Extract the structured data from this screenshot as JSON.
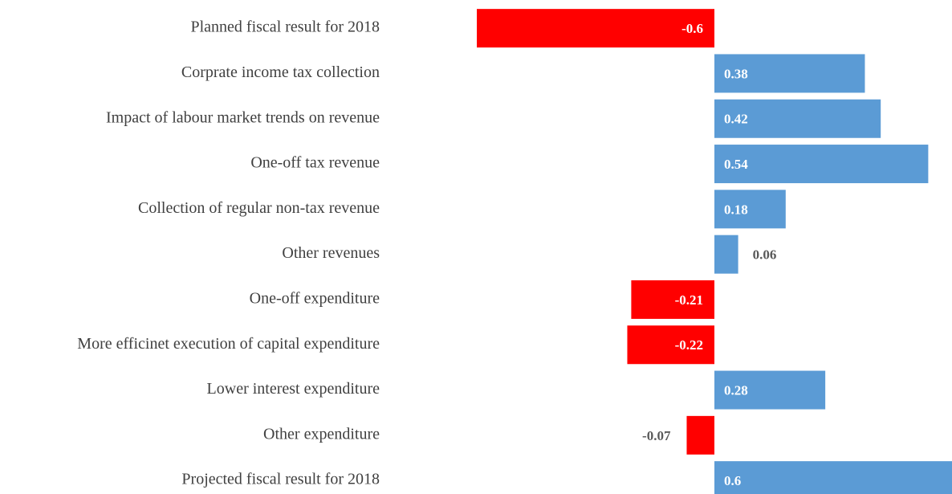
{
  "chart_data": {
    "type": "bar",
    "orientation": "horizontal",
    "categories": [
      "Planned fiscal result for 2018",
      "Corprate income tax collection",
      "Impact of labour market trends on revenue",
      "One-off tax revenue",
      "Collection of regular non-tax revenue",
      "Other revenues",
      "One-off expenditure",
      "More  efficinet execution of capital expenditure",
      "Lower interest expenditure",
      "Other expenditure",
      "Projected fiscal result for 2018"
    ],
    "values": [
      -0.6,
      0.38,
      0.42,
      0.54,
      0.18,
      0.06,
      -0.21,
      -0.22,
      0.28,
      -0.07,
      0.6
    ],
    "colors": [
      "#ff0000",
      "#5b9bd5",
      "#5b9bd5",
      "#5b9bd5",
      "#5b9bd5",
      "#5b9bd5",
      "#ff0000",
      "#ff0000",
      "#5b9bd5",
      "#ff0000",
      "#5b9bd5"
    ]
  }
}
